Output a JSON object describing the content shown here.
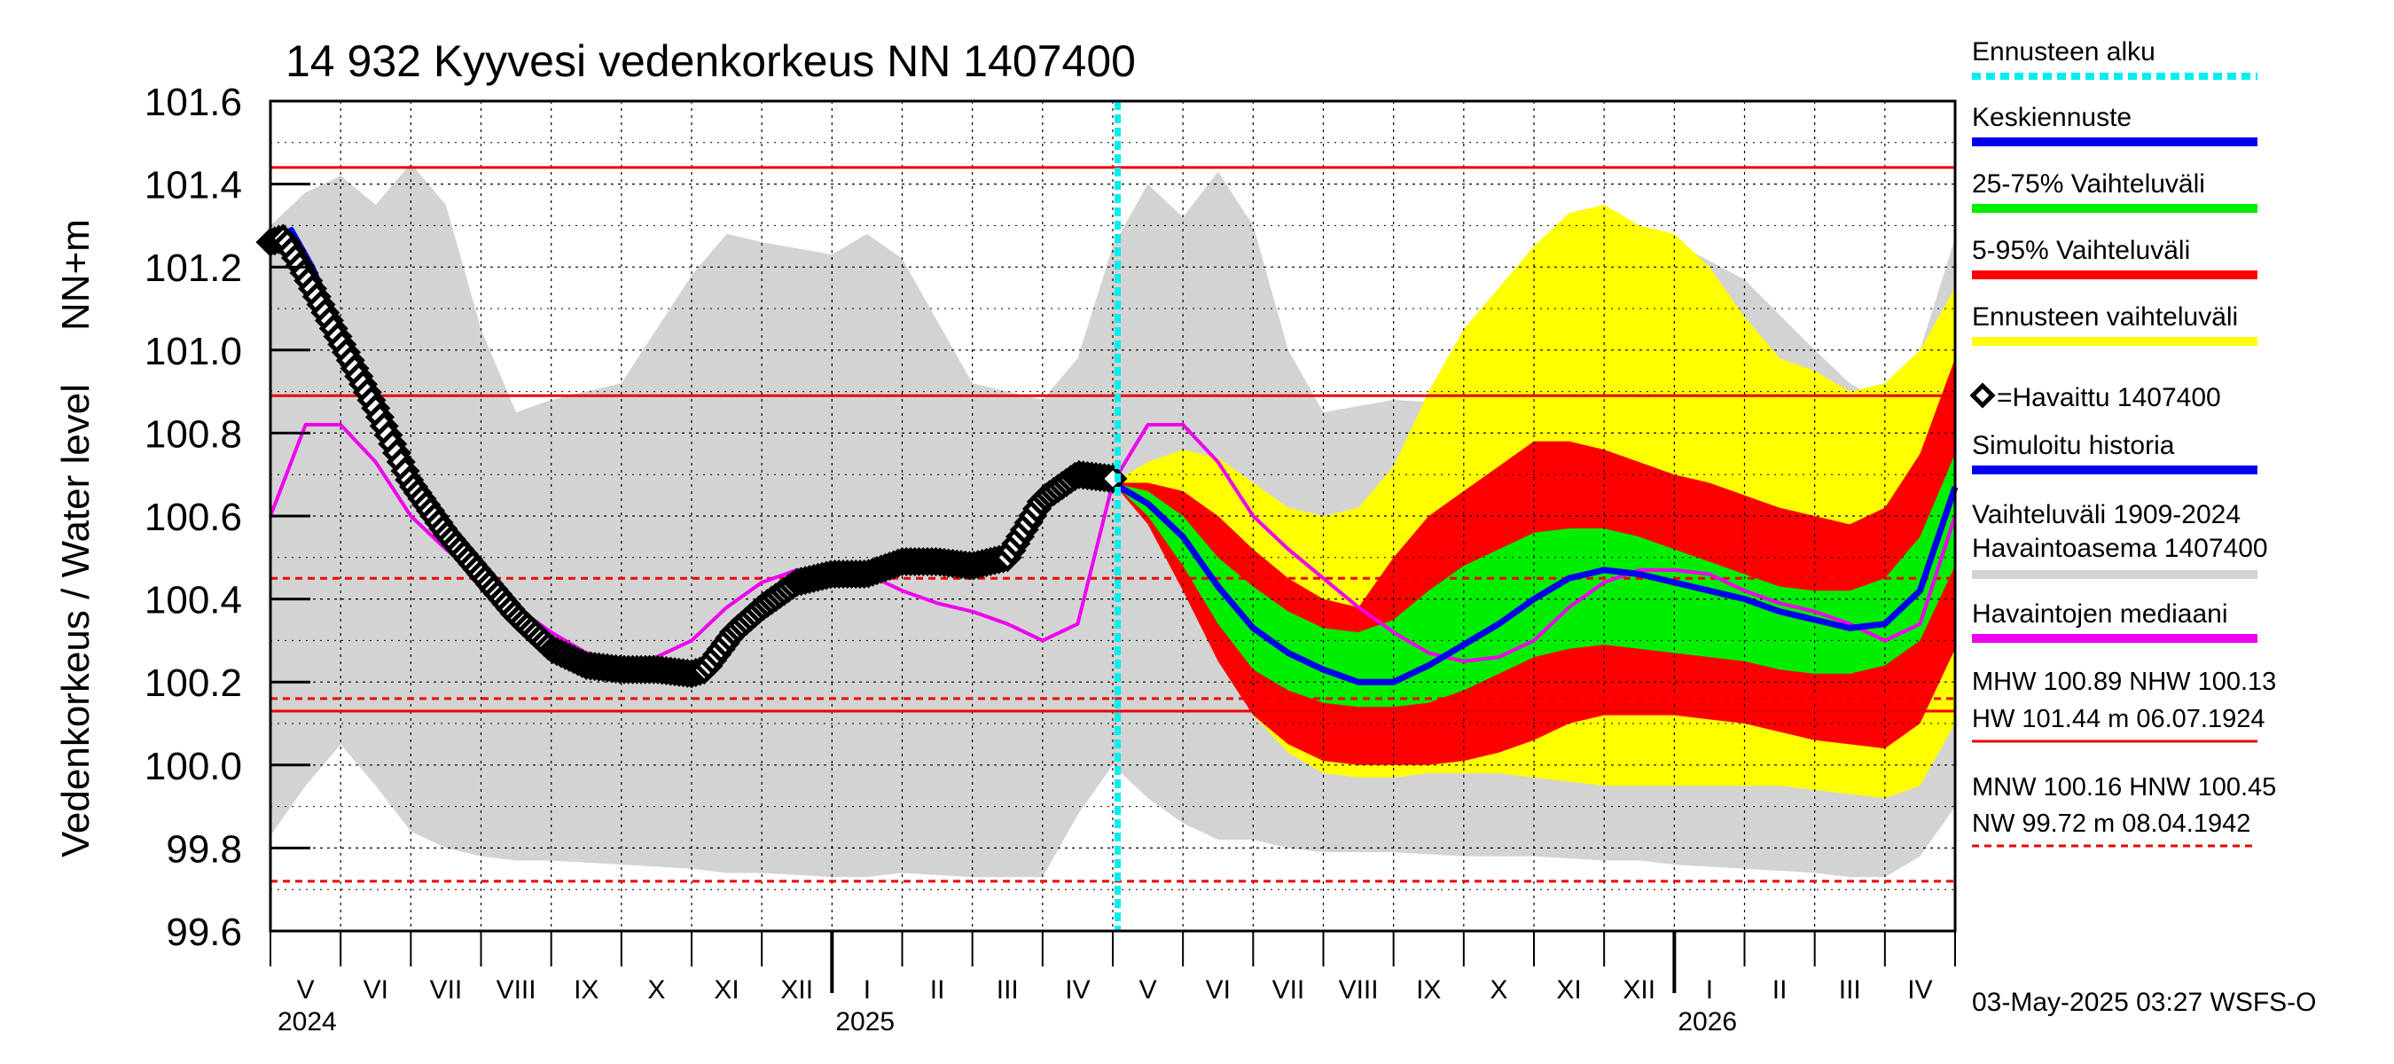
{
  "chart_data": {
    "type": "area",
    "title": "14 932 Kyyvesi vedenkorkeus NN 1407400",
    "ylabel_top": "NN+m",
    "ylabel": "Vedenkorkeus / Water level",
    "ylim": [
      99.6,
      101.6
    ],
    "yticks": [
      "101.6",
      "101.4",
      "101.2",
      "101.0",
      "100.8",
      "100.6",
      "100.4",
      "100.2",
      "100.0",
      "99.8",
      "99.6"
    ],
    "x_range_months": [
      0,
      24
    ],
    "months": [
      {
        "label": "V",
        "m": 0
      },
      {
        "label": "VI",
        "m": 1
      },
      {
        "label": "VII",
        "m": 2
      },
      {
        "label": "VIII",
        "m": 3
      },
      {
        "label": "IX",
        "m": 4
      },
      {
        "label": "X",
        "m": 5
      },
      {
        "label": "XI",
        "m": 6
      },
      {
        "label": "XII",
        "m": 7
      },
      {
        "label": "I",
        "m": 8
      },
      {
        "label": "II",
        "m": 9
      },
      {
        "label": "III",
        "m": 10
      },
      {
        "label": "IV",
        "m": 11
      },
      {
        "label": "V",
        "m": 12
      },
      {
        "label": "VI",
        "m": 13
      },
      {
        "label": "VII",
        "m": 14
      },
      {
        "label": "VIII",
        "m": 15
      },
      {
        "label": "IX",
        "m": 16
      },
      {
        "label": "X",
        "m": 17
      },
      {
        "label": "XI",
        "m": 18
      },
      {
        "label": "XII",
        "m": 19
      },
      {
        "label": "I",
        "m": 20
      },
      {
        "label": "II",
        "m": 21
      },
      {
        "label": "III",
        "m": 22
      },
      {
        "label": "IV",
        "m": 23
      }
    ],
    "years": [
      {
        "label": "2024",
        "m": 0
      },
      {
        "label": "2025",
        "m": 8
      },
      {
        "label": "2026",
        "m": 20
      }
    ],
    "forecast_start_m": 12.07,
    "reference_lines": [
      {
        "name": "HW",
        "value": 101.44,
        "style": "solid"
      },
      {
        "name": "MHW",
        "value": 100.89,
        "style": "solid"
      },
      {
        "name": "HNW",
        "value": 100.45,
        "style": "dashed"
      },
      {
        "name": "MNW",
        "value": 100.16,
        "style": "dashed"
      },
      {
        "name": "NHW",
        "value": 100.13,
        "style": "solid"
      },
      {
        "name": "NW",
        "value": 99.72,
        "style": "dashed"
      }
    ],
    "series": [
      {
        "name": "Vaihteluväli 1909-2024 Havaintoasema 1407400",
        "kind": "band",
        "color": "#d3d3d3",
        "x": [
          0,
          0.5,
          1,
          1.5,
          2,
          2.5,
          3,
          3.5,
          4,
          5,
          6,
          6.5,
          7,
          8,
          8.5,
          9,
          10,
          11,
          11.5,
          12,
          12.5,
          13,
          13.5,
          14,
          14.5,
          15,
          16,
          17,
          18,
          19,
          19.5,
          20,
          21,
          22,
          22.5,
          23,
          23.5,
          24
        ],
        "upper": [
          101.3,
          101.38,
          101.42,
          101.35,
          101.45,
          101.35,
          101.05,
          100.85,
          100.88,
          100.92,
          101.18,
          101.28,
          101.26,
          101.23,
          101.28,
          101.22,
          100.92,
          100.88,
          100.98,
          101.25,
          101.4,
          101.32,
          101.43,
          101.3,
          101.0,
          100.85,
          100.88,
          100.87,
          101.02,
          101.22,
          101.27,
          101.26,
          101.17,
          101.0,
          100.92,
          100.87,
          101.0,
          101.27
        ],
        "lower": [
          99.83,
          99.95,
          100.05,
          99.95,
          99.84,
          99.8,
          99.78,
          99.77,
          99.77,
          99.76,
          99.75,
          99.74,
          99.74,
          99.73,
          99.73,
          99.74,
          99.73,
          99.73,
          99.88,
          100.0,
          99.92,
          99.86,
          99.82,
          99.82,
          99.8,
          99.79,
          99.79,
          99.78,
          99.78,
          99.77,
          99.77,
          99.76,
          99.75,
          99.74,
          99.73,
          99.73,
          99.78,
          99.9
        ]
      },
      {
        "name": "Ennusteen vaihteluväli",
        "kind": "band",
        "color": "#ffff00",
        "x": [
          12.0,
          12.5,
          13,
          13.5,
          14,
          14.5,
          15,
          15.5,
          16,
          16.5,
          17,
          17.5,
          18,
          18.5,
          19,
          19.5,
          20,
          20.5,
          21,
          21.5,
          22,
          22.5,
          23,
          23.5,
          24
        ],
        "upper": [
          100.68,
          100.73,
          100.76,
          100.74,
          100.68,
          100.62,
          100.6,
          100.62,
          100.72,
          100.9,
          101.05,
          101.15,
          101.25,
          101.33,
          101.35,
          101.3,
          101.28,
          101.2,
          101.08,
          100.98,
          100.95,
          100.9,
          100.92,
          101.0,
          101.15
        ],
        "lower": [
          100.68,
          100.62,
          100.48,
          100.3,
          100.12,
          100.03,
          99.98,
          99.97,
          99.97,
          99.98,
          99.98,
          99.98,
          99.97,
          99.96,
          99.95,
          99.95,
          99.95,
          99.95,
          99.95,
          99.95,
          99.94,
          99.93,
          99.92,
          99.95,
          100.1
        ]
      },
      {
        "name": "5-95% Vaihteluväli",
        "kind": "band",
        "color": "#ff0000",
        "x": [
          12.0,
          12.5,
          13,
          13.5,
          14,
          14.5,
          15,
          15.5,
          16,
          16.5,
          17,
          17.5,
          18,
          18.5,
          19,
          19.5,
          20,
          20.5,
          21,
          21.5,
          22,
          22.5,
          23,
          23.5,
          24
        ],
        "upper": [
          100.68,
          100.68,
          100.66,
          100.6,
          100.52,
          100.45,
          100.4,
          100.38,
          100.5,
          100.6,
          100.66,
          100.72,
          100.78,
          100.78,
          100.76,
          100.73,
          100.7,
          100.68,
          100.65,
          100.62,
          100.6,
          100.58,
          100.62,
          100.75,
          100.98
        ],
        "lower": [
          100.68,
          100.58,
          100.42,
          100.25,
          100.12,
          100.05,
          100.01,
          100.0,
          100.0,
          100.0,
          100.01,
          100.03,
          100.06,
          100.1,
          100.12,
          100.12,
          100.12,
          100.11,
          100.1,
          100.08,
          100.06,
          100.05,
          100.04,
          100.1,
          100.28
        ]
      },
      {
        "name": "25-75% Vaihteluväli",
        "kind": "band",
        "color": "#00ee00",
        "x": [
          12.0,
          12.5,
          13,
          13.5,
          14,
          14.5,
          15,
          15.5,
          16,
          16.5,
          17,
          17.5,
          18,
          18.5,
          19,
          19.5,
          20,
          20.5,
          21,
          21.5,
          22,
          22.5,
          23,
          23.5,
          24
        ],
        "upper": [
          100.68,
          100.66,
          100.6,
          100.5,
          100.43,
          100.37,
          100.33,
          100.32,
          100.35,
          100.42,
          100.48,
          100.52,
          100.56,
          100.57,
          100.57,
          100.55,
          100.52,
          100.49,
          100.46,
          100.43,
          100.42,
          100.42,
          100.45,
          100.55,
          100.75
        ],
        "lower": [
          100.68,
          100.6,
          100.48,
          100.34,
          100.23,
          100.18,
          100.15,
          100.14,
          100.14,
          100.15,
          100.18,
          100.22,
          100.26,
          100.28,
          100.29,
          100.28,
          100.27,
          100.26,
          100.25,
          100.23,
          100.22,
          100.22,
          100.24,
          100.3,
          100.48
        ]
      },
      {
        "name": "Keskiennuste",
        "kind": "line",
        "color": "#0000ee",
        "x": [
          12.0,
          12.5,
          13,
          13.5,
          14,
          14.5,
          15,
          15.5,
          16,
          16.5,
          17,
          17.5,
          18,
          18.5,
          19,
          19.5,
          20,
          20.5,
          21,
          21.5,
          22,
          22.5,
          23,
          23.5,
          24
        ],
        "values": [
          100.68,
          100.63,
          100.55,
          100.43,
          100.33,
          100.27,
          100.23,
          100.2,
          100.2,
          100.24,
          100.29,
          100.34,
          100.4,
          100.45,
          100.47,
          100.46,
          100.44,
          100.42,
          100.4,
          100.37,
          100.35,
          100.33,
          100.34,
          100.42,
          100.67
        ]
      },
      {
        "name": "Havaintojen mediaani",
        "kind": "line",
        "color": "#ee00ee",
        "x": [
          0,
          0.5,
          1,
          1.5,
          2,
          2.5,
          3,
          3.5,
          4,
          4.5,
          5,
          5.5,
          6,
          6.5,
          7,
          7.5,
          8,
          8.5,
          9,
          9.5,
          10,
          10.5,
          11,
          11.5,
          12,
          12.5,
          13,
          13.5,
          14,
          14.5,
          15,
          15.5,
          16,
          16.5,
          17,
          17.5,
          18,
          18.5,
          19,
          19.5,
          20,
          20.5,
          21,
          21.5,
          22,
          22.5,
          23,
          23.5,
          24
        ],
        "values": [
          100.6,
          100.82,
          100.82,
          100.73,
          100.6,
          100.52,
          100.45,
          100.38,
          100.32,
          100.27,
          100.25,
          100.26,
          100.3,
          100.38,
          100.44,
          100.47,
          100.47,
          100.46,
          100.42,
          100.39,
          100.37,
          100.34,
          100.3,
          100.34,
          100.68,
          100.82,
          100.82,
          100.73,
          100.6,
          100.52,
          100.45,
          100.38,
          100.32,
          100.27,
          100.25,
          100.26,
          100.3,
          100.38,
          100.44,
          100.47,
          100.47,
          100.46,
          100.42,
          100.39,
          100.37,
          100.34,
          100.3,
          100.34,
          100.6
        ]
      },
      {
        "name": "Havaittu 1407400",
        "kind": "observed",
        "color": "#000000",
        "x": [
          0,
          0.2,
          0.5,
          1.0,
          1.5,
          2.0,
          2.5,
          3.0,
          3.5,
          4.0,
          4.5,
          5.0,
          5.5,
          6.0,
          6.2,
          6.6,
          7.0,
          7.5,
          8.0,
          8.5,
          9.0,
          9.5,
          10.0,
          10.5,
          11.0,
          11.5,
          12.0
        ],
        "values": [
          101.26,
          101.27,
          101.18,
          101.02,
          100.86,
          100.68,
          100.56,
          100.46,
          100.36,
          100.28,
          100.24,
          100.23,
          100.23,
          100.22,
          100.23,
          100.32,
          100.38,
          100.44,
          100.46,
          100.46,
          100.49,
          100.49,
          100.48,
          100.5,
          100.64,
          100.7,
          100.69
        ]
      },
      {
        "name": "Simuloitu historia",
        "kind": "line",
        "color": "#0000ee",
        "x": [
          0,
          0.3,
          0.6,
          1.0,
          1.5,
          2.0,
          2.5,
          3.0
        ],
        "values": [
          101.26,
          101.29,
          101.2,
          101.04,
          100.86,
          100.67,
          100.55,
          100.46
        ]
      }
    ]
  },
  "legend": [
    {
      "label": "Ennusteen alku",
      "color": "#00eeee",
      "style": "dotted"
    },
    {
      "label": "Keskiennuste",
      "color": "#0000ee",
      "style": "solid"
    },
    {
      "label": "25-75% Vaihteluväli",
      "color": "#00ee00",
      "style": "solid"
    },
    {
      "label": "5-95% Vaihteluväli",
      "color": "#ff0000",
      "style": "solid"
    },
    {
      "label": "Ennusteen vaihteluväli",
      "color": "#ffff00",
      "style": "solid"
    },
    {
      "label": "=Havaittu 1407400",
      "color": "#000000",
      "style": "marker"
    },
    {
      "label": "Simuloitu historia",
      "color": "#0000ee",
      "style": "solid"
    },
    {
      "label": "Vaihteluväli 1909-2024",
      "label2": " Havaintoasema 1407400",
      "color": "#d3d3d3",
      "style": "solid"
    },
    {
      "label": "Havaintojen mediaani",
      "color": "#ee00ee",
      "style": "solid"
    }
  ],
  "stats": {
    "block1_line1": "MHW 100.89 NHW 100.13",
    "block1_line2": "HW 101.44 m 06.07.1924",
    "block2_line1": "MNW 100.16 HNW 100.45",
    "block2_line2": "NW  99.72 m 08.04.1942"
  },
  "footer": "03-May-2025 03:27 WSFS-O",
  "colors": {
    "hw_line": "#ee0000",
    "grid": "#000000",
    "forecast_start": "#00eeee"
  }
}
